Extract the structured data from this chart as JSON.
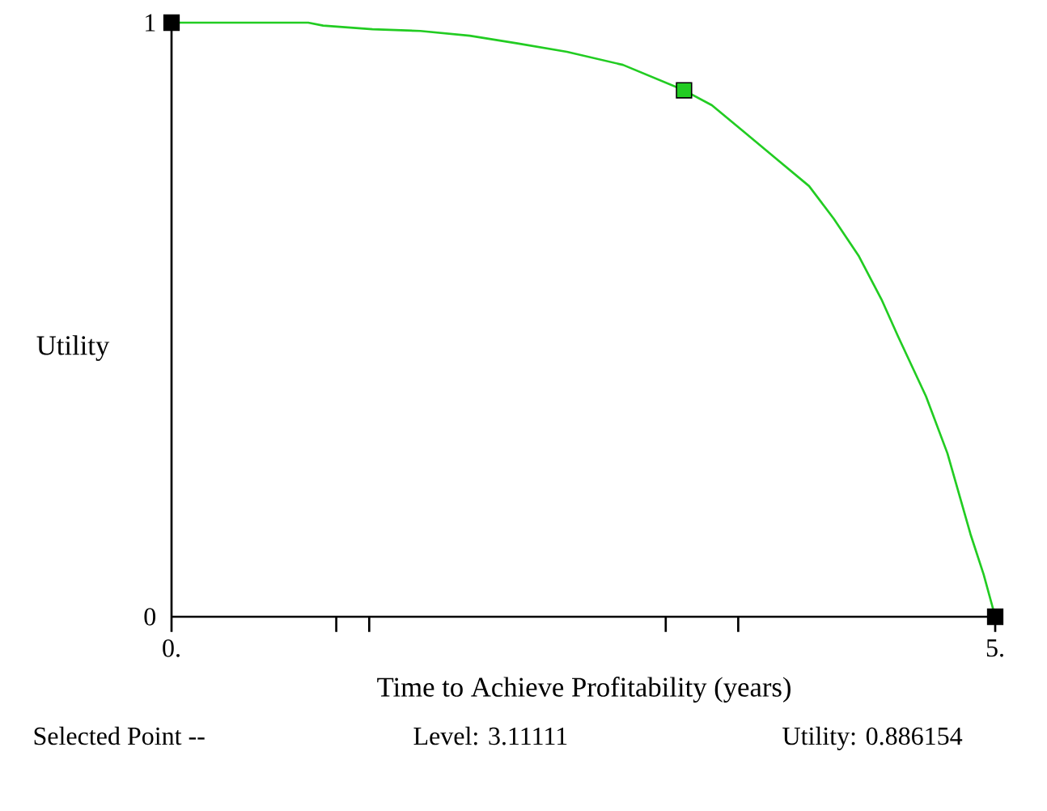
{
  "chart_data": {
    "type": "line",
    "xlabel": "Time to Achieve Profitability (years)",
    "ylabel": "Utility",
    "xlim": [
      0,
      5
    ],
    "ylim": [
      0,
      1
    ],
    "xticks": [
      {
        "value": 0,
        "label": "0."
      },
      {
        "value": 1.0,
        "label": null
      },
      {
        "value": 1.2,
        "label": null
      },
      {
        "value": 3.0,
        "label": null
      },
      {
        "value": 3.44,
        "label": null
      },
      {
        "value": 5,
        "label": "5."
      }
    ],
    "yticks": [
      0,
      1
    ],
    "series": [
      {
        "color": "#22cc22",
        "x": [
          0,
          0.53,
          0.83,
          0.92,
          1.22,
          1.51,
          1.81,
          2.1,
          2.4,
          2.74,
          3.11111,
          3.28,
          3.48,
          3.67,
          3.87,
          4.02,
          4.17,
          4.31,
          4.41,
          4.58,
          4.71,
          4.85,
          4.93,
          5
        ],
        "values": [
          1,
          1,
          1,
          0.995,
          0.989,
          0.986,
          0.978,
          0.965,
          0.951,
          0.929,
          0.886154,
          0.861,
          0.815,
          0.771,
          0.725,
          0.67,
          0.608,
          0.534,
          0.472,
          0.371,
          0.275,
          0.139,
          0.071,
          0
        ]
      },
      {
        "type": "scatter",
        "marker": "square",
        "x": [
          0,
          3.11111,
          5
        ],
        "values": [
          1,
          0.886154,
          0
        ],
        "colors": [
          "#000000",
          "#22cc22",
          "#000000"
        ]
      }
    ],
    "annotations": [
      "Selected Point --",
      "Level:  3.11111",
      "Utility:  0.886154"
    ]
  }
}
